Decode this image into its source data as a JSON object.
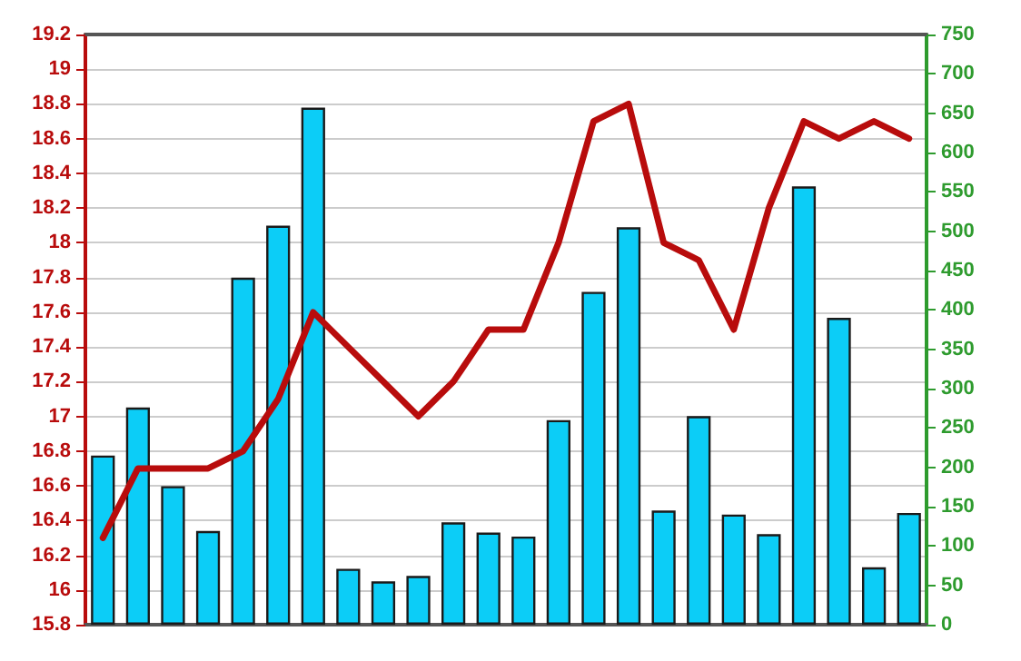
{
  "chart_data": {
    "type": "bar",
    "categories": [
      null,
      null,
      null,
      null,
      null,
      null,
      null,
      null,
      null,
      null,
      null,
      null,
      null,
      null,
      null,
      null,
      null,
      null,
      null,
      null,
      null,
      null,
      null,
      null
    ],
    "series": [
      {
        "axis": "y2",
        "color": "#0ccdf7",
        "values": [
          215,
          276,
          176,
          119,
          441,
          507,
          657,
          71,
          55,
          62,
          130,
          117,
          112,
          260,
          423,
          505,
          145,
          265,
          140,
          115,
          557,
          390,
          73,
          142
        ]
      },
      {
        "type": "line",
        "axis": "y",
        "color": "#b80c0c",
        "values": [
          16.3,
          16.7,
          16.7,
          16.7,
          16.8,
          17.1,
          17.6,
          17.4,
          17.2,
          17.0,
          17.2,
          17.5,
          17.5,
          18.0,
          18.7,
          18.8,
          18.0,
          17.9,
          17.5,
          18.2,
          18.7,
          18.6,
          18.7,
          18.6
        ]
      }
    ],
    "ylim": [
      15.8,
      19.2
    ],
    "yticks": [
      15.8,
      16,
      16.2,
      16.4,
      16.6,
      16.8,
      17,
      17.2,
      17.4,
      17.6,
      17.8,
      18,
      18.2,
      18.4,
      18.6,
      18.8,
      19,
      19.2
    ],
    "y2lim": [
      0,
      750
    ],
    "y2ticks": [
      0,
      50,
      100,
      150,
      200,
      250,
      300,
      350,
      400,
      450,
      500,
      550,
      600,
      650,
      700,
      750
    ],
    "grid": "y",
    "marker": "none",
    "line_style": "solid"
  }
}
